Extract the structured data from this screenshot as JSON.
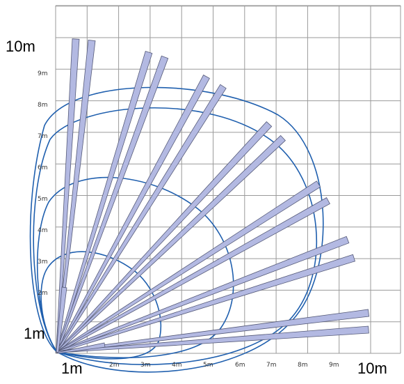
{
  "labels": {
    "y_top": "10m",
    "origin_y": "1m",
    "origin_x": "1m",
    "x_end": "10m",
    "y_ticks": [
      "2m",
      "3m",
      "4m",
      "5m",
      "6m",
      "7m",
      "8m",
      "9m"
    ],
    "x_ticks": [
      "2m",
      "3m",
      "4m",
      "5m",
      "6m",
      "7m",
      "8m",
      "9m"
    ]
  },
  "colors": {
    "grid": "#9a9a9a",
    "beam_fill": "#b3b9e2",
    "beam_stroke": "#555a78",
    "arc": "#1f5fae"
  },
  "diagram": {
    "grid_extent_m": 10,
    "beam_count": 16,
    "zone_count": 4
  }
}
